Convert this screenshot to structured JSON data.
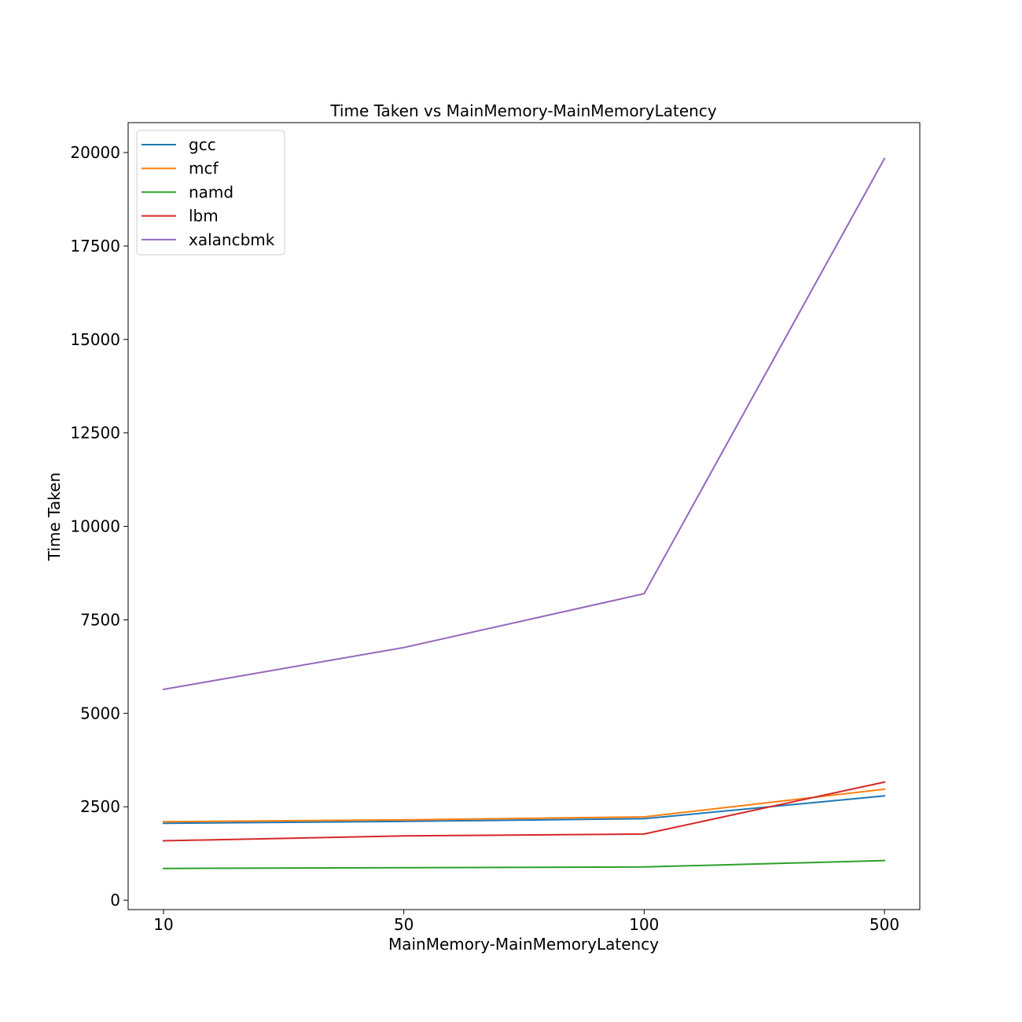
{
  "chart_data": {
    "type": "line",
    "title": "Time Taken vs MainMemory-MainMemoryLatency",
    "xlabel": "MainMemory-MainMemoryLatency",
    "ylabel": "Time Taken",
    "categories": [
      "10",
      "50",
      "100",
      "500"
    ],
    "ylim": [
      -250,
      20800
    ],
    "yticks": [
      0,
      2500,
      5000,
      7500,
      10000,
      12500,
      15000,
      17500,
      20000
    ],
    "grid": false,
    "legend_position": "top-left",
    "series": [
      {
        "name": "gcc",
        "color": "#1f77b4",
        "values": [
          2060,
          2110,
          2180,
          2790
        ]
      },
      {
        "name": "mcf",
        "color": "#ff7f0e",
        "values": [
          2100,
          2150,
          2230,
          2970
        ]
      },
      {
        "name": "namd",
        "color": "#2ca02c",
        "values": [
          850,
          870,
          890,
          1060
        ]
      },
      {
        "name": "lbm",
        "color": "#d62728",
        "values": [
          1590,
          1720,
          1770,
          3160
        ]
      },
      {
        "name": "xalancbmk",
        "color": "#9467bd",
        "values": [
          5640,
          6760,
          8200,
          19840
        ]
      }
    ]
  }
}
